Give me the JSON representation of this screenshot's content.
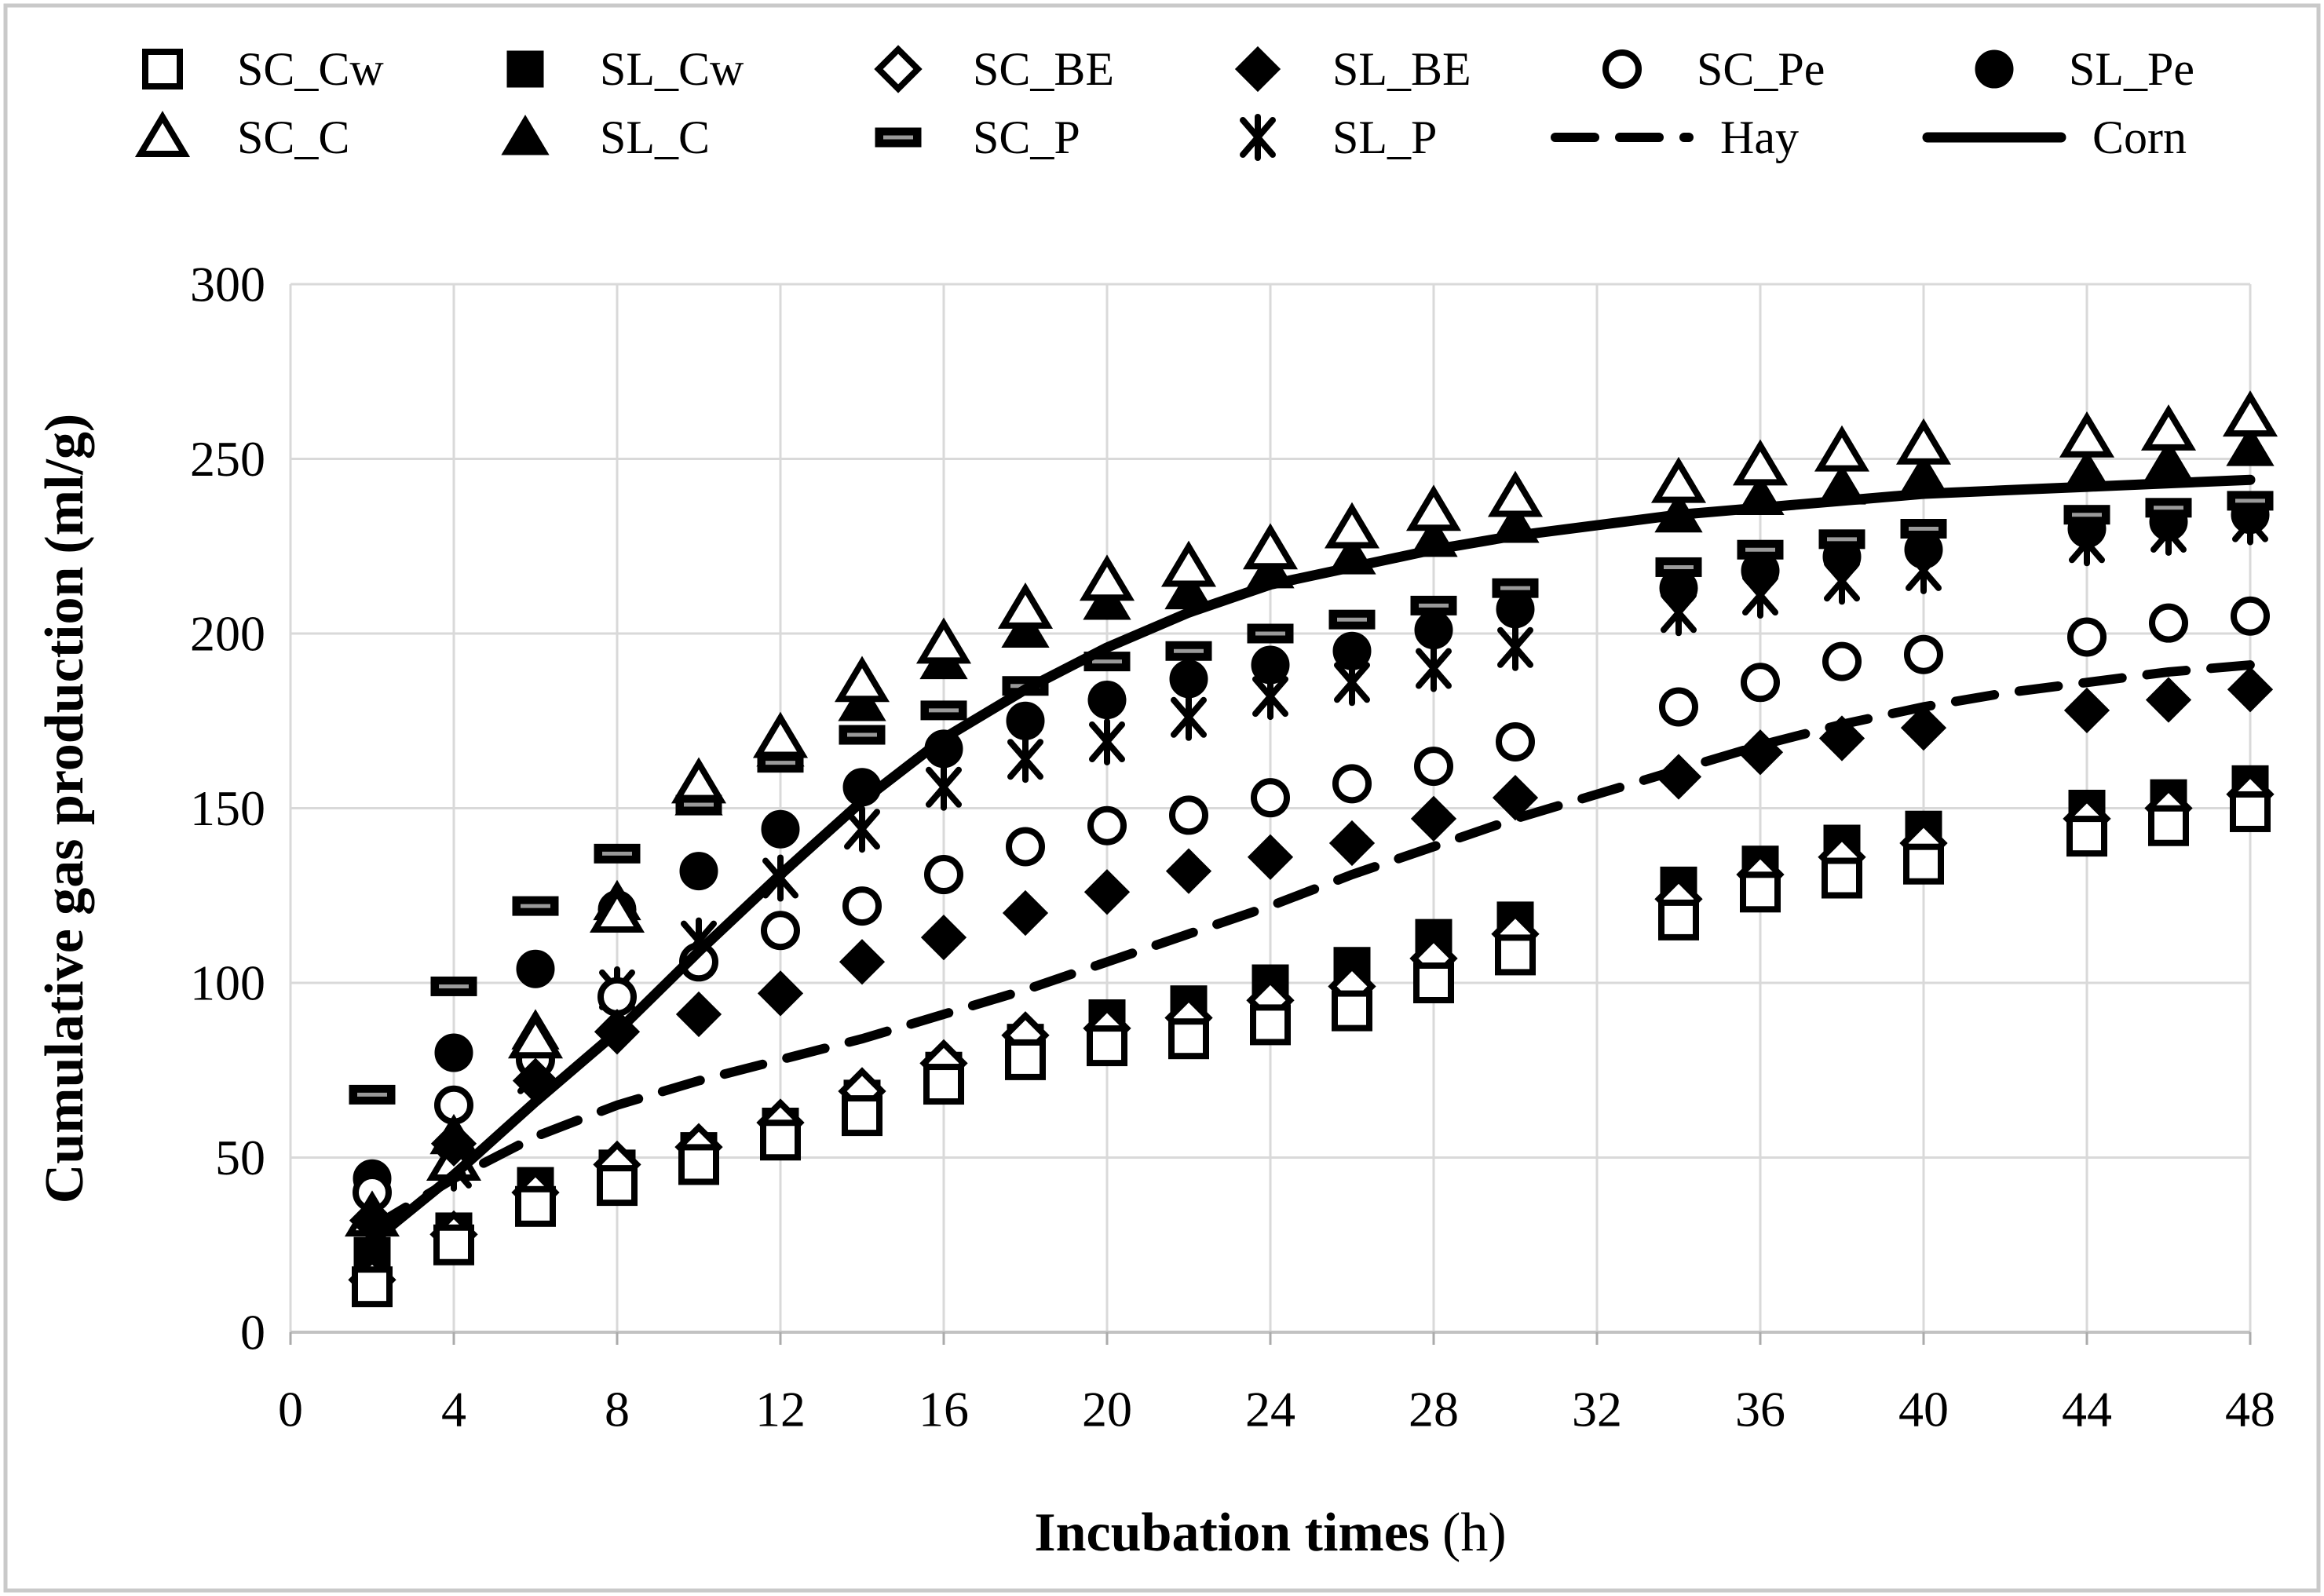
{
  "figure": {
    "kind": "scatter-line chart",
    "background": "#ffffff",
    "border_color": "#c9c9c9",
    "ink_color": "#000000",
    "gridline_color": "#d9d9d9"
  },
  "axes": {
    "x": {
      "title_main": "Incubation times",
      "title_unit": "(h)",
      "min": 0,
      "max": 48,
      "step": 4,
      "tick_labels": [
        "0",
        "4",
        "8",
        "12",
        "16",
        "20",
        "24",
        "28",
        "32",
        "36",
        "40",
        "44",
        "48"
      ]
    },
    "y": {
      "title_main": "Cumulative gas production",
      "title_unit": "(ml/g)",
      "min": 0,
      "max": 300,
      "step": 50,
      "tick_labels": [
        "0",
        "50",
        "100",
        "150",
        "200",
        "250",
        "300"
      ]
    }
  },
  "legend": {
    "rows": 2,
    "items": [
      {
        "label": "SC_Cw",
        "marker": "open-square"
      },
      {
        "label": "SL_Cw",
        "marker": "filled-square"
      },
      {
        "label": "SC_BE",
        "marker": "open-diamond"
      },
      {
        "label": "SL_BE",
        "marker": "filled-diamond"
      },
      {
        "label": "SC_Pe",
        "marker": "open-circle"
      },
      {
        "label": "SL_Pe",
        "marker": "filled-circle"
      },
      {
        "label": "SC_C",
        "marker": "open-triangle"
      },
      {
        "label": "SL_C",
        "marker": "filled-triangle"
      },
      {
        "label": "SC_P",
        "marker": "dash"
      },
      {
        "label": "SL_P",
        "marker": "star"
      },
      {
        "label": "Hay",
        "marker": "dashed-line"
      },
      {
        "label": "Corn",
        "marker": "solid-line"
      }
    ]
  },
  "chart_data": {
    "type": "scatter",
    "title": "",
    "xlabel": "Incubation times (h)",
    "ylabel": "Cumulative gas production (ml/g)",
    "xlim": [
      0,
      48
    ],
    "ylim": [
      0,
      300
    ],
    "grid": true,
    "legend_position": "top",
    "x_hours": [
      2,
      4,
      6,
      8,
      10,
      12,
      14,
      16,
      18,
      20,
      22,
      24,
      26,
      28,
      30,
      34,
      36,
      38,
      40,
      44,
      46,
      48
    ],
    "series": [
      {
        "name": "SC_Cw",
        "marker": "open-square",
        "values": [
          13,
          25,
          36,
          42,
          48,
          55,
          62,
          71,
          78,
          82,
          84,
          88,
          92,
          100,
          108,
          118,
          126,
          130,
          134,
          142,
          145,
          149
        ]
      },
      {
        "name": "SL_Cw",
        "marker": "filled-square",
        "values": [
          22,
          29,
          42,
          47,
          52,
          59,
          67,
          75,
          83,
          90,
          94,
          100,
          105,
          113,
          118,
          128,
          134,
          140,
          144,
          150,
          153,
          157
        ]
      },
      {
        "name": "SC_BE",
        "marker": "open-diamond",
        "values": [
          15,
          28,
          40,
          48,
          53,
          60,
          69,
          77,
          85,
          87,
          90,
          95,
          99,
          107,
          114,
          124,
          131,
          136,
          140,
          147,
          150,
          154
        ]
      },
      {
        "name": "SL_BE",
        "marker": "filled-diamond",
        "values": [
          32,
          54,
          72,
          86,
          91,
          97,
          106,
          113,
          120,
          126,
          132,
          136,
          140,
          147,
          153,
          159,
          166,
          170,
          173,
          178,
          181,
          184
        ]
      },
      {
        "name": "SC_Pe",
        "marker": "open-circle",
        "values": [
          40,
          65,
          78,
          96,
          106,
          115,
          122,
          131,
          139,
          145,
          148,
          153,
          157,
          162,
          169,
          179,
          186,
          192,
          194,
          199,
          203,
          205
        ]
      },
      {
        "name": "SL_Pe",
        "marker": "filled-circle",
        "values": [
          44,
          80,
          104,
          121,
          132,
          144,
          156,
          167,
          175,
          181,
          187,
          191,
          195,
          201,
          207,
          213,
          218,
          222,
          224,
          230,
          232,
          234
        ]
      },
      {
        "name": "SC_C",
        "marker": "open-triangle",
        "values": [
          33,
          49,
          84,
          120,
          157,
          170,
          186,
          197,
          207,
          215,
          219,
          224,
          230,
          235,
          239,
          243,
          248,
          252,
          254,
          256,
          258,
          262
        ]
      },
      {
        "name": "SL_C",
        "marker": "filled-triangle",
        "values": [
          34,
          56,
          86,
          123,
          153,
          167,
          180,
          192,
          201,
          209,
          212,
          218,
          222,
          227,
          231,
          234,
          239,
          242,
          245,
          246,
          249,
          253
        ]
      },
      {
        "name": "SC_P",
        "marker": "dash",
        "values": [
          68,
          99,
          122,
          137,
          151,
          163,
          171,
          178,
          185,
          192,
          195,
          200,
          204,
          208,
          213,
          219,
          224,
          227,
          230,
          234,
          236,
          238
        ]
      },
      {
        "name": "SL_P",
        "marker": "star",
        "values": [
          35,
          47,
          74,
          98,
          112,
          130,
          144,
          156,
          164,
          169,
          176,
          182,
          186,
          190,
          196,
          206,
          211,
          215,
          218,
          226,
          229,
          232
        ]
      }
    ],
    "lines": [
      {
        "name": "Hay",
        "style": "dashed",
        "points": [
          [
            2,
            30
          ],
          [
            4,
            44
          ],
          [
            6,
            56
          ],
          [
            8,
            65
          ],
          [
            10,
            72
          ],
          [
            12,
            78
          ],
          [
            14,
            84
          ],
          [
            16,
            91
          ],
          [
            18,
            98
          ],
          [
            20,
            106
          ],
          [
            22,
            114
          ],
          [
            24,
            122
          ],
          [
            26,
            131
          ],
          [
            28,
            139
          ],
          [
            30,
            147
          ],
          [
            32,
            154
          ],
          [
            34,
            161
          ],
          [
            36,
            168
          ],
          [
            38,
            174
          ],
          [
            40,
            179
          ],
          [
            42,
            183
          ],
          [
            44,
            186
          ],
          [
            46,
            189
          ],
          [
            48,
            191
          ]
        ]
      },
      {
        "name": "Corn",
        "style": "solid",
        "points": [
          [
            2,
            26
          ],
          [
            4,
            45
          ],
          [
            6,
            66
          ],
          [
            8,
            86
          ],
          [
            10,
            109
          ],
          [
            12,
            131
          ],
          [
            14,
            152
          ],
          [
            16,
            170
          ],
          [
            18,
            184
          ],
          [
            20,
            196
          ],
          [
            22,
            206
          ],
          [
            24,
            214
          ],
          [
            26,
            219
          ],
          [
            28,
            224
          ],
          [
            30,
            228
          ],
          [
            32,
            231
          ],
          [
            34,
            234
          ],
          [
            36,
            236
          ],
          [
            38,
            238
          ],
          [
            40,
            240
          ],
          [
            42,
            241
          ],
          [
            44,
            242
          ],
          [
            46,
            243
          ],
          [
            48,
            244
          ]
        ]
      }
    ]
  }
}
